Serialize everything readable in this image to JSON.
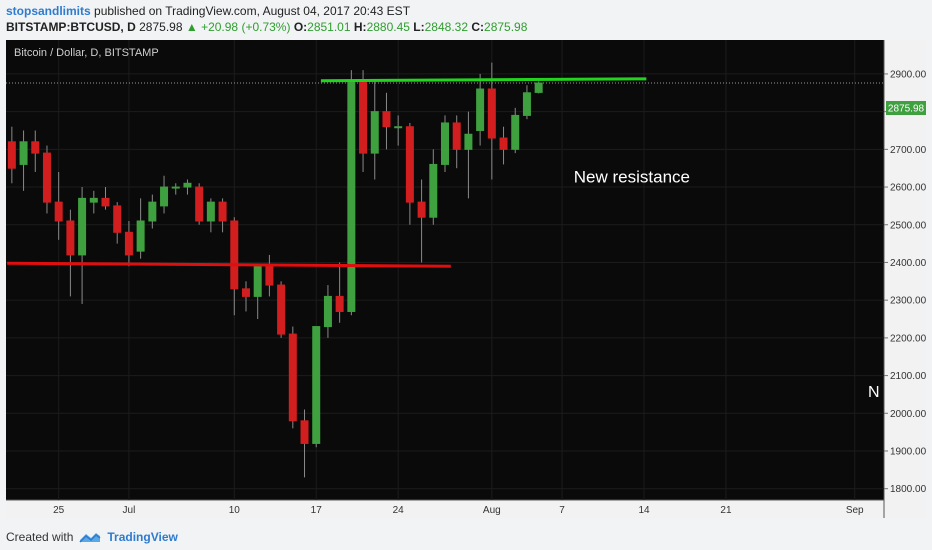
{
  "header": {
    "author": "stopsandlimits",
    "published": " published on TradingView.com, August 04, 2017 20:43 EST",
    "symbol": "BITSTAMP:BTCUSD, D",
    "price": "2875.98",
    "change": "▲ +20.98 (+0.73%)",
    "o_label": "O:",
    "o": "2851.01",
    "h_label": "H:",
    "h": "2880.45",
    "l_label": "L:",
    "l": "2848.32",
    "c_label": "C:",
    "c": "2875.98"
  },
  "footer": {
    "created_with": "Created with",
    "brand": "TradingView"
  },
  "chart_data": {
    "type": "candlestick",
    "title": "Bitcoin / Dollar, D, BITSTAMP",
    "ylim": [
      1770,
      2990
    ],
    "y_ticks": [
      1800,
      1900,
      2000,
      2100,
      2200,
      2300,
      2400,
      2500,
      2600,
      2700,
      2800,
      2900
    ],
    "x_ticks": [
      {
        "label": "25",
        "day": 25
      },
      {
        "label": "Jul",
        "day": 31
      },
      {
        "label": "10",
        "day": 40
      },
      {
        "label": "17",
        "day": 47
      },
      {
        "label": "24",
        "day": 54
      },
      {
        "label": "Aug",
        "day": 62
      },
      {
        "label": "7",
        "day": 68
      },
      {
        "label": "14",
        "day": 75
      },
      {
        "label": "21",
        "day": 82
      },
      {
        "label": "Sep",
        "day": 93
      }
    ],
    "xlim": [
      20.5,
      95.5
    ],
    "last_price": "2875.98",
    "last_price_value": 2875.98,
    "colors": {
      "up": "#3fa03f",
      "down": "#d21e1e",
      "background": "#000000",
      "resistance": "#22d41e",
      "support": "#e00e0e"
    },
    "candles": [
      {
        "day": 21,
        "o": 2720,
        "h": 2760,
        "l": 2610,
        "c": 2650
      },
      {
        "day": 22,
        "o": 2660,
        "h": 2750,
        "l": 2590,
        "c": 2720
      },
      {
        "day": 23,
        "o": 2720,
        "h": 2750,
        "l": 2640,
        "c": 2690
      },
      {
        "day": 24,
        "o": 2690,
        "h": 2710,
        "l": 2530,
        "c": 2560
      },
      {
        "day": 25,
        "o": 2560,
        "h": 2640,
        "l": 2460,
        "c": 2510
      },
      {
        "day": 26,
        "o": 2510,
        "h": 2540,
        "l": 2310,
        "c": 2420
      },
      {
        "day": 27,
        "o": 2420,
        "h": 2600,
        "l": 2290,
        "c": 2570
      },
      {
        "day": 28,
        "o": 2560,
        "h": 2590,
        "l": 2530,
        "c": 2570
      },
      {
        "day": 29,
        "o": 2570,
        "h": 2600,
        "l": 2540,
        "c": 2550
      },
      {
        "day": 30,
        "o": 2550,
        "h": 2560,
        "l": 2450,
        "c": 2480
      },
      {
        "day": 31,
        "o": 2480,
        "h": 2510,
        "l": 2390,
        "c": 2420
      },
      {
        "day": 32,
        "o": 2430,
        "h": 2570,
        "l": 2410,
        "c": 2510
      },
      {
        "day": 33,
        "o": 2510,
        "h": 2580,
        "l": 2490,
        "c": 2560
      },
      {
        "day": 34,
        "o": 2550,
        "h": 2630,
        "l": 2530,
        "c": 2600
      },
      {
        "day": 35,
        "o": 2600,
        "h": 2610,
        "l": 2580,
        "c": 2600
      },
      {
        "day": 36,
        "o": 2600,
        "h": 2620,
        "l": 2580,
        "c": 2610
      },
      {
        "day": 37,
        "o": 2600,
        "h": 2610,
        "l": 2500,
        "c": 2510
      },
      {
        "day": 38,
        "o": 2510,
        "h": 2570,
        "l": 2480,
        "c": 2560
      },
      {
        "day": 39,
        "o": 2560,
        "h": 2570,
        "l": 2480,
        "c": 2510
      },
      {
        "day": 40,
        "o": 2510,
        "h": 2520,
        "l": 2260,
        "c": 2330
      },
      {
        "day": 41,
        "o": 2330,
        "h": 2350,
        "l": 2270,
        "c": 2310
      },
      {
        "day": 42,
        "o": 2310,
        "h": 2390,
        "l": 2250,
        "c": 2390
      },
      {
        "day": 43,
        "o": 2390,
        "h": 2420,
        "l": 2310,
        "c": 2340
      },
      {
        "day": 44,
        "o": 2340,
        "h": 2350,
        "l": 2200,
        "c": 2210
      },
      {
        "day": 45,
        "o": 2210,
        "h": 2230,
        "l": 1960,
        "c": 1980
      },
      {
        "day": 46,
        "o": 1980,
        "h": 2010,
        "l": 1830,
        "c": 1920
      },
      {
        "day": 47,
        "o": 1920,
        "h": 2230,
        "l": 1910,
        "c": 2230
      },
      {
        "day": 48,
        "o": 2230,
        "h": 2340,
        "l": 2200,
        "c": 2310
      },
      {
        "day": 49,
        "o": 2310,
        "h": 2400,
        "l": 2240,
        "c": 2270
      },
      {
        "day": 50,
        "o": 2270,
        "h": 2910,
        "l": 2260,
        "c": 2880
      },
      {
        "day": 51,
        "o": 2880,
        "h": 2910,
        "l": 2640,
        "c": 2690
      },
      {
        "day": 52,
        "o": 2690,
        "h": 2880,
        "l": 2620,
        "c": 2800
      },
      {
        "day": 53,
        "o": 2800,
        "h": 2850,
        "l": 2700,
        "c": 2760
      },
      {
        "day": 54,
        "o": 2760,
        "h": 2790,
        "l": 2710,
        "c": 2760
      },
      {
        "day": 55,
        "o": 2760,
        "h": 2770,
        "l": 2500,
        "c": 2560
      },
      {
        "day": 56,
        "o": 2560,
        "h": 2620,
        "l": 2400,
        "c": 2520
      },
      {
        "day": 57,
        "o": 2520,
        "h": 2700,
        "l": 2500,
        "c": 2660
      },
      {
        "day": 58,
        "o": 2660,
        "h": 2790,
        "l": 2640,
        "c": 2770
      },
      {
        "day": 59,
        "o": 2770,
        "h": 2790,
        "l": 2650,
        "c": 2700
      },
      {
        "day": 60,
        "o": 2700,
        "h": 2800,
        "l": 2570,
        "c": 2740
      },
      {
        "day": 61,
        "o": 2750,
        "h": 2900,
        "l": 2710,
        "c": 2860
      },
      {
        "day": 62,
        "o": 2860,
        "h": 2930,
        "l": 2620,
        "c": 2730
      },
      {
        "day": 63,
        "o": 2730,
        "h": 2760,
        "l": 2660,
        "c": 2700
      },
      {
        "day": 64,
        "o": 2700,
        "h": 2810,
        "l": 2690,
        "c": 2790
      },
      {
        "day": 65,
        "o": 2790,
        "h": 2870,
        "l": 2780,
        "c": 2850
      },
      {
        "day": 66,
        "o": 2851.01,
        "h": 2880.45,
        "l": 2848.32,
        "c": 2875.98
      }
    ],
    "annotations": [
      {
        "type": "line",
        "color": "#22d41e",
        "from": {
          "day": 47.4,
          "price": 2882
        },
        "to": {
          "day": 75.2,
          "price": 2887
        }
      },
      {
        "type": "line",
        "color": "#e00e0e",
        "from": {
          "day": 20.6,
          "price": 2398
        },
        "to": {
          "day": 58.5,
          "price": 2390
        }
      },
      {
        "type": "text",
        "text": "New resistance",
        "day": 69,
        "price": 2612
      }
    ],
    "edge_text": "N"
  }
}
